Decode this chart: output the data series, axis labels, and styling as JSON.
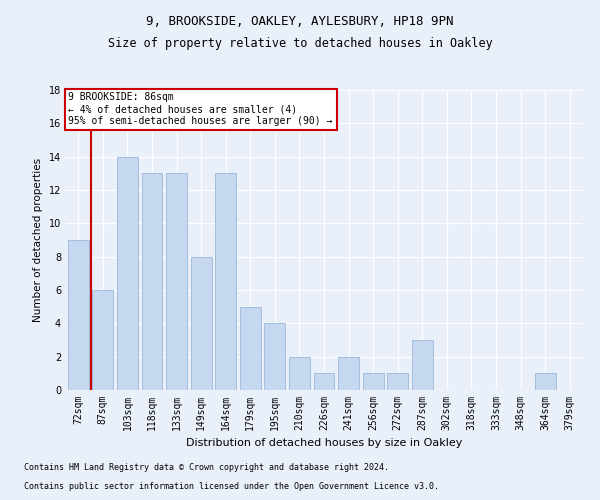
{
  "title1": "9, BROOKSIDE, OAKLEY, AYLESBURY, HP18 9PN",
  "title2": "Size of property relative to detached houses in Oakley",
  "xlabel": "Distribution of detached houses by size in Oakley",
  "ylabel": "Number of detached properties",
  "categories": [
    "72sqm",
    "87sqm",
    "103sqm",
    "118sqm",
    "133sqm",
    "149sqm",
    "164sqm",
    "179sqm",
    "195sqm",
    "210sqm",
    "226sqm",
    "241sqm",
    "256sqm",
    "272sqm",
    "287sqm",
    "302sqm",
    "318sqm",
    "333sqm",
    "348sqm",
    "364sqm",
    "379sqm"
  ],
  "values": [
    9,
    6,
    14,
    13,
    13,
    8,
    13,
    5,
    4,
    2,
    1,
    2,
    1,
    1,
    3,
    0,
    0,
    0,
    0,
    1,
    0
  ],
  "bar_color": "#c5d8f0",
  "bar_edge_color": "#9ab8d8",
  "vline_color": "#cc0000",
  "vline_x": 0.5,
  "annotation_text": "9 BROOKSIDE: 86sqm\n← 4% of detached houses are smaller (4)\n95% of semi-detached houses are larger (90) →",
  "annotation_box_facecolor": "#ffffff",
  "annotation_box_edgecolor": "#cc0000",
  "footnote1": "Contains HM Land Registry data © Crown copyright and database right 2024.",
  "footnote2": "Contains public sector information licensed under the Open Government Licence v3.0.",
  "ylim": [
    0,
    18
  ],
  "yticks": [
    0,
    2,
    4,
    6,
    8,
    10,
    12,
    14,
    16,
    18
  ],
  "bg_color": "#eaf0fa",
  "grid_color": "#ffffff",
  "title1_fontsize": 9,
  "title2_fontsize": 8.5,
  "xlabel_fontsize": 8,
  "ylabel_fontsize": 7.5,
  "tick_fontsize": 7,
  "annot_fontsize": 7,
  "footnote_fontsize": 6
}
